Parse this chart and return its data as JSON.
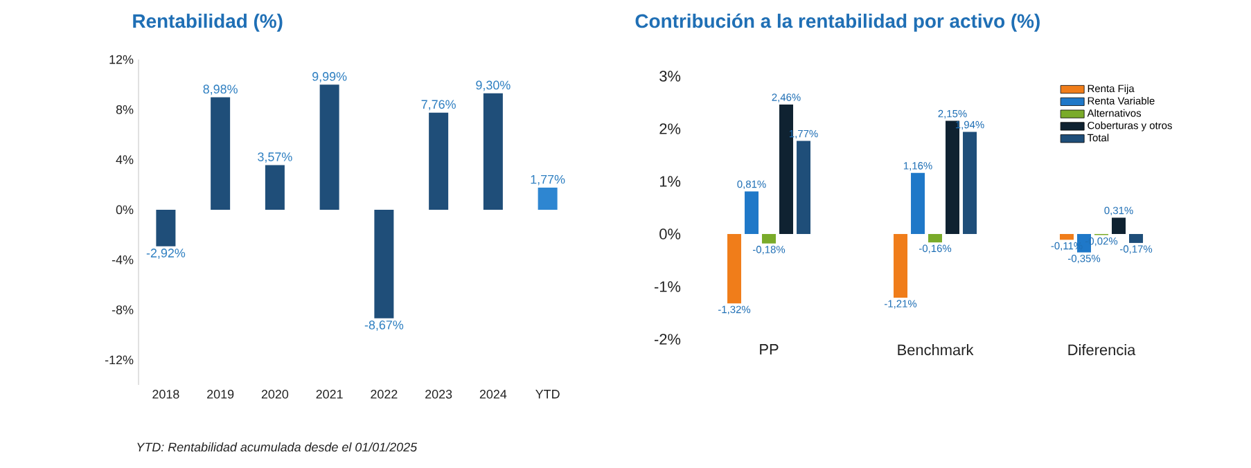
{
  "chart_data": [
    {
      "type": "bar",
      "title": "Rentabilidad (%)",
      "categories": [
        "2018",
        "2019",
        "2020",
        "2021",
        "2022",
        "2023",
        "2024",
        "YTD"
      ],
      "values": [
        -2.92,
        8.98,
        3.57,
        9.99,
        -8.67,
        7.76,
        9.3,
        1.77
      ],
      "colors": [
        "#1f4e79",
        "#1f4e79",
        "#1f4e79",
        "#1f4e79",
        "#1f4e79",
        "#1f4e79",
        "#1f4e79",
        "#2e86d1"
      ],
      "value_labels": [
        "-2,92%",
        "8,98%",
        "3,57%",
        "9,99%",
        "-8,67%",
        "7,76%",
        "9,30%",
        "1,77%"
      ],
      "ylim": [
        -14,
        12
      ],
      "yticks": [
        {
          "value": -12,
          "label": "-12%"
        },
        {
          "value": -8,
          "label": "-8%"
        },
        {
          "value": -4,
          "label": "-4%"
        },
        {
          "value": 0,
          "label": "0%"
        },
        {
          "value": 4,
          "label": "4%"
        },
        {
          "value": 8,
          "label": "8%"
        },
        {
          "value": 12,
          "label": "12%"
        }
      ],
      "annotations": [
        "*YTD: Rentabilidad acumulada desde el 01/01/2025*"
      ]
    },
    {
      "type": "bar",
      "title": "Contribución a la rentabilidad por activo (%)",
      "categories": [
        "PP",
        "Benchmark",
        "Diferencia"
      ],
      "series": [
        {
          "name": "Renta Fija",
          "color": "#f07d1a",
          "values": [
            -1.32,
            -1.21,
            -0.11
          ],
          "value_labels": [
            "-1,32%",
            "-1,21%",
            "-0,11%"
          ]
        },
        {
          "name": "Renta Variable",
          "color": "#1f78c8",
          "values": [
            0.81,
            1.16,
            -0.35
          ],
          "value_labels": [
            "0,81%",
            "1,16%",
            "-0,35%"
          ]
        },
        {
          "name": "Alternativos",
          "color": "#7aab2a",
          "values": [
            -0.18,
            -0.16,
            -0.02
          ],
          "value_labels": [
            "-0,18%",
            "-0,16%",
            "-0,02%"
          ]
        },
        {
          "name": "Coberturas y otros",
          "color": "#0f2231",
          "values": [
            2.46,
            2.15,
            0.31
          ],
          "value_labels": [
            "2,46%",
            "2,15%",
            "0,31%"
          ]
        },
        {
          "name": "Total",
          "color": "#1f4e79",
          "values": [
            1.77,
            1.94,
            -0.17
          ],
          "value_labels": [
            "1,77%",
            "1,94%",
            "-0,17%"
          ]
        }
      ],
      "ylim": [
        -2,
        3
      ],
      "yticks": [
        {
          "value": -2,
          "label": "-2%"
        },
        {
          "value": -1,
          "label": "-1%"
        },
        {
          "value": 0,
          "label": "0%"
        },
        {
          "value": 1,
          "label": "1%"
        },
        {
          "value": 2,
          "label": "2%"
        },
        {
          "value": 3,
          "label": "3%"
        }
      ],
      "legend": "top right"
    }
  ]
}
